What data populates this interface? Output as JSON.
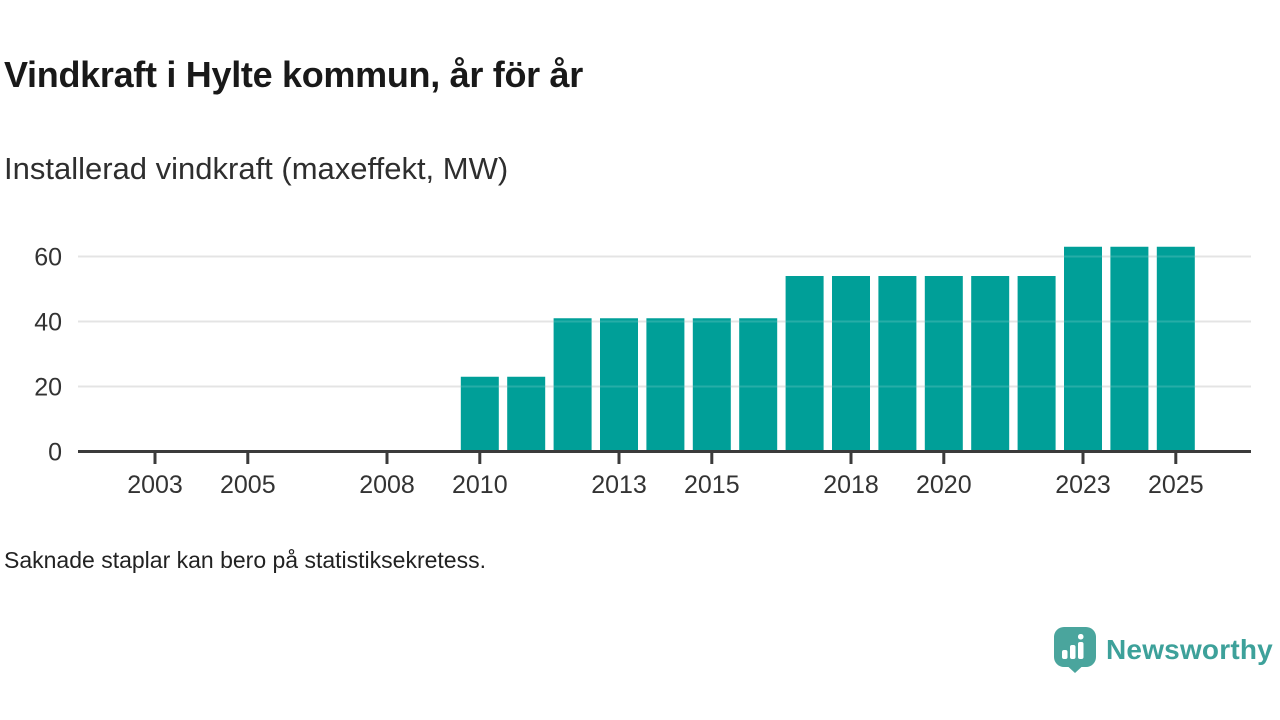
{
  "header": {
    "title": "Vindkraft i Hylte kommun, år för år",
    "subtitle": "Installerad vindkraft (maxeffekt, MW)"
  },
  "chart_data": {
    "type": "bar",
    "title": "Vindkraft i Hylte kommun, år för år",
    "subtitle": "Installerad vindkraft (maxeffekt, MW)",
    "ylabel": "MW",
    "xlabel": "",
    "ylim": [
      0,
      63
    ],
    "x_domain_years": [
      2001,
      2026
    ],
    "grid": "horizontal",
    "legend": "none",
    "bar_color": "#009f98",
    "gridline_color": "#e0e0e0",
    "axis_color": "#3b3b3b",
    "y_ticks": [
      0,
      20,
      40,
      60
    ],
    "x_tick_years": [
      2003,
      2005,
      2008,
      2010,
      2013,
      2015,
      2018,
      2020,
      2023,
      2025
    ],
    "series": [
      {
        "name": "Installerad vindkraft (maxeffekt, MW)",
        "points": [
          {
            "year": 2010,
            "value": 23
          },
          {
            "year": 2011,
            "value": 23
          },
          {
            "year": 2012,
            "value": 41
          },
          {
            "year": 2013,
            "value": 41
          },
          {
            "year": 2014,
            "value": 41
          },
          {
            "year": 2015,
            "value": 41
          },
          {
            "year": 2016,
            "value": 41
          },
          {
            "year": 2017,
            "value": 54
          },
          {
            "year": 2018,
            "value": 54
          },
          {
            "year": 2019,
            "value": 54
          },
          {
            "year": 2020,
            "value": 54
          },
          {
            "year": 2021,
            "value": 54
          },
          {
            "year": 2022,
            "value": 54
          },
          {
            "year": 2023,
            "value": 63
          },
          {
            "year": 2024,
            "value": 63
          },
          {
            "year": 2025,
            "value": 63
          }
        ]
      }
    ],
    "missing_years_note": "2001-2009 har inga staplar"
  },
  "footnote": {
    "text": "Saknade staplar kan bero på statistiksekretess."
  },
  "branding": {
    "logo_label": "Newsworthy",
    "logo_color": "#3da19a",
    "logo_icon": "newsworthy-speech-bubble-bar-chart-icon",
    "logo_icon_bg": "#4aa59d"
  }
}
